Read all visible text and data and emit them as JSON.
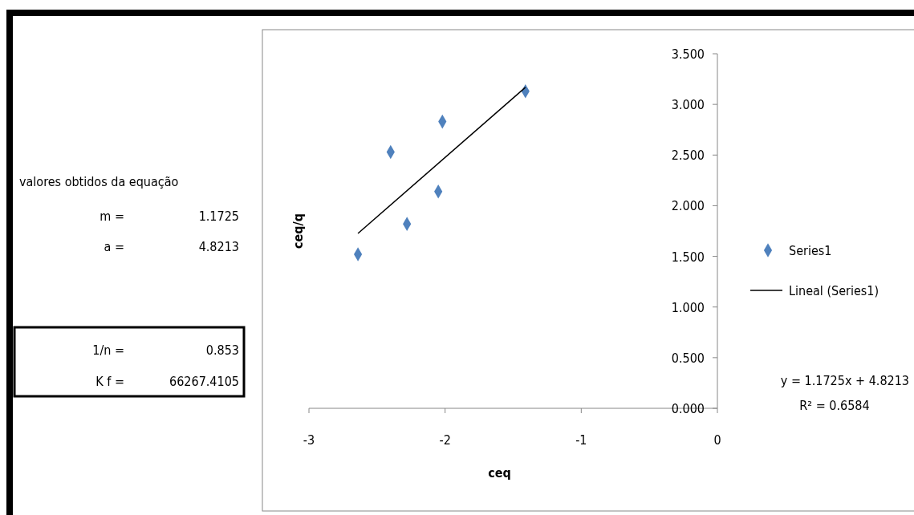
{
  "chart_data": {
    "type": "scatter",
    "xlabel": "ceq",
    "ylabel": "ceq/q",
    "xlim": [
      -3,
      0
    ],
    "xticks": [
      -3,
      -2,
      -1,
      0
    ],
    "ylim": [
      0,
      3.5
    ],
    "yticks": [
      {
        "value": 0,
        "label": "0.000"
      },
      {
        "value": 0.5,
        "label": "0.500"
      },
      {
        "value": 1,
        "label": "1.000"
      },
      {
        "value": 1.5,
        "label": "1.500"
      },
      {
        "value": 2,
        "label": "2.000"
      },
      {
        "value": 2.5,
        "label": "2.500"
      },
      {
        "value": 3,
        "label": "3.000"
      },
      {
        "value": 3.5,
        "label": "3.500"
      }
    ],
    "grid": false,
    "legend": "right",
    "series": [
      {
        "name": "Series1",
        "marker": "diamond",
        "color": "#4f81bd",
        "x": [
          -2.64,
          -2.4,
          -2.28,
          -2.05,
          -2.02,
          -1.41
        ],
        "values": [
          1.52,
          2.53,
          1.82,
          2.14,
          2.83,
          3.13
        ]
      },
      {
        "name": "Lineal (Series1)",
        "type": "line",
        "color": "#000000",
        "x": [
          -2.64,
          -1.41
        ],
        "values": [
          1.726,
          3.168
        ]
      }
    ],
    "annotations": [
      "valores obtidos da equação",
      "m =",
      "1.1725",
      "a =",
      "4.8213",
      "1/n =",
      "0.853",
      "K f =",
      "66267.4105",
      "y = 1.1725x + 4.8213",
      "R² = 0.6584"
    ]
  }
}
